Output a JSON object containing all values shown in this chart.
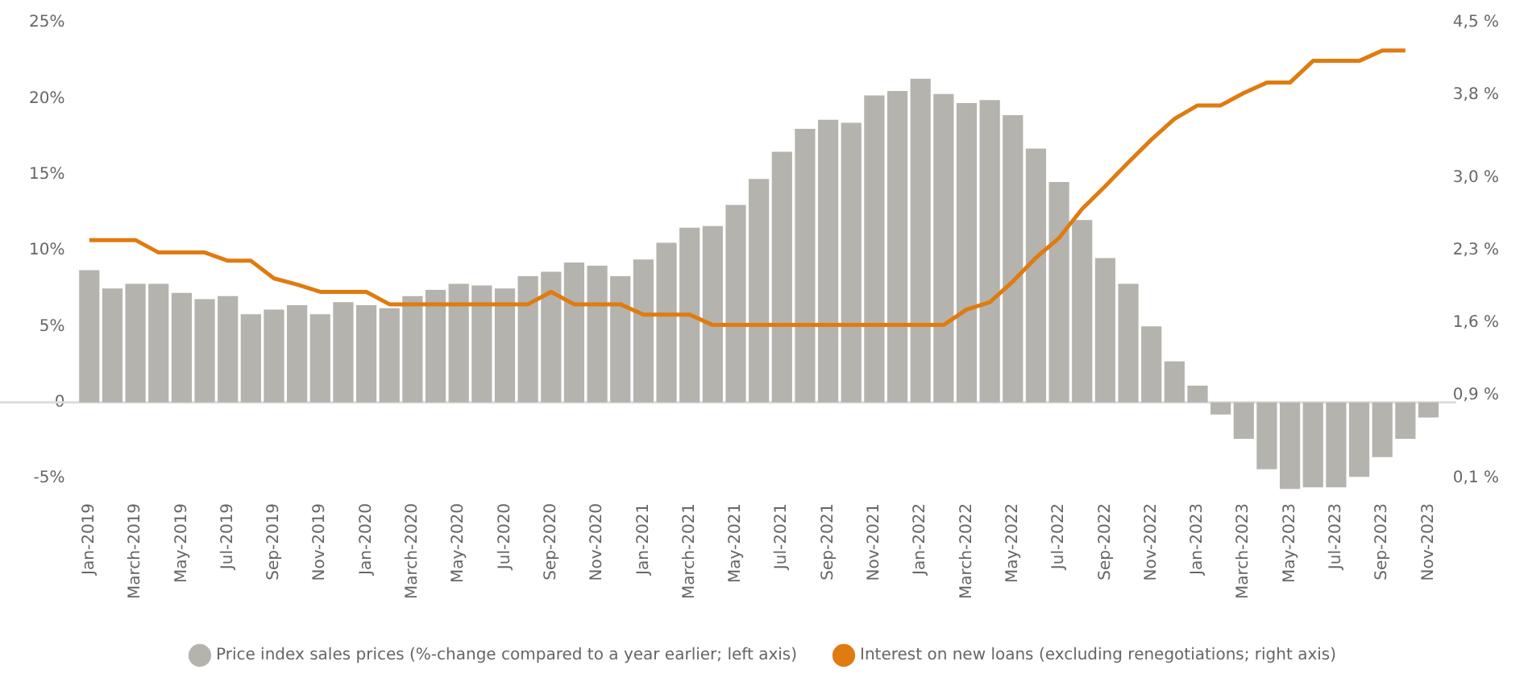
{
  "chart_data": {
    "type": "bar",
    "categories": [
      "Jan-2019",
      null,
      "March-2019",
      null,
      "May-2019",
      null,
      "Jul-2019",
      null,
      "Sep-2019",
      null,
      "Nov-2019",
      null,
      "Jan-2020",
      null,
      "March-2020",
      null,
      "May-2020",
      null,
      "Jul-2020",
      null,
      "Sep-2020",
      null,
      "Nov-2020",
      null,
      "Jan-2021",
      null,
      "March-2021",
      null,
      "May-2021",
      null,
      "Jul-2021",
      null,
      "Sep-2021",
      null,
      "Nov-2021",
      null,
      "Jan-2022",
      null,
      "March-2022",
      null,
      "May-2022",
      null,
      "Jul-2022",
      null,
      "Sep-2022",
      null,
      "Nov-2022",
      null,
      "Jan-2023",
      null,
      "March-2023",
      null,
      "May-2023",
      null,
      "Jul-2023",
      null,
      "Sep-2023",
      null,
      "Nov-2023"
    ],
    "series": [
      {
        "name": "Price index sales prices (%-change compared to a year earlier; left axis)",
        "color": "#b5b3ae",
        "values": [
          8.7,
          7.5,
          7.8,
          7.8,
          7.2,
          6.8,
          7.0,
          5.8,
          6.1,
          6.4,
          5.8,
          6.6,
          6.4,
          6.2,
          7.0,
          7.4,
          7.8,
          7.7,
          7.5,
          8.3,
          8.6,
          9.2,
          9.0,
          8.3,
          9.4,
          10.5,
          11.5,
          11.6,
          13.0,
          14.7,
          16.5,
          18.0,
          18.6,
          18.4,
          20.2,
          20.5,
          21.3,
          20.3,
          19.7,
          19.9,
          18.9,
          16.7,
          14.5,
          12.0,
          9.5,
          7.8,
          5.0,
          2.7,
          1.1,
          -0.8,
          -2.4,
          -4.4,
          -5.7,
          -5.6,
          -5.6,
          -4.9,
          -3.6,
          -2.4,
          -1.0
        ]
      },
      {
        "name": "Interest on new loans (excluding renegotiations; right axis)",
        "type": "line",
        "axis": "y2",
        "color": "#e07b10",
        "values": [
          2.4,
          2.4,
          2.4,
          2.28,
          2.28,
          2.28,
          2.2,
          2.2,
          2.03,
          1.97,
          1.9,
          1.9,
          1.9,
          1.78,
          1.78,
          1.78,
          1.78,
          1.78,
          1.78,
          1.78,
          1.9,
          1.78,
          1.78,
          1.78,
          1.68,
          1.68,
          1.68,
          1.58,
          1.58,
          1.58,
          1.58,
          1.58,
          1.58,
          1.58,
          1.58,
          1.58,
          1.58,
          1.58,
          1.73,
          1.8,
          2.0,
          2.23,
          2.42,
          2.7,
          2.92,
          3.15,
          3.37,
          3.57,
          3.7,
          3.7,
          3.82,
          3.92,
          3.92,
          4.13,
          4.13,
          4.13,
          4.23,
          4.23,
          null
        ]
      }
    ],
    "ylim": [
      -6,
      25
    ],
    "yticks": [
      {
        "value": -5,
        "label": "-5%"
      },
      0,
      {
        "value": 5,
        "label": "5%"
      },
      {
        "value": 10,
        "label": "10%"
      },
      {
        "value": 15,
        "label": "15%"
      },
      {
        "value": 20,
        "label": "20%"
      },
      {
        "value": 25,
        "label": "25%"
      }
    ],
    "y2lim": [
      -0.047,
      4.5
    ],
    "y2ticks": [
      {
        "value": 0.1,
        "label": "0,1 %"
      },
      {
        "value": 0.9,
        "label": "0,9 %"
      },
      {
        "value": 1.6,
        "label": "1,6 %"
      },
      {
        "value": 2.3,
        "label": "2,3 %"
      },
      {
        "value": 3.0,
        "label": "3,0 %"
      },
      {
        "value": 3.8,
        "label": "3,8 %"
      },
      {
        "value": 4.5,
        "label": "4,5 %"
      }
    ],
    "ref_lines": [
      {
        "axis": "y",
        "value": 0,
        "color": "#dcdcdc"
      }
    ],
    "legend": "bottom"
  }
}
